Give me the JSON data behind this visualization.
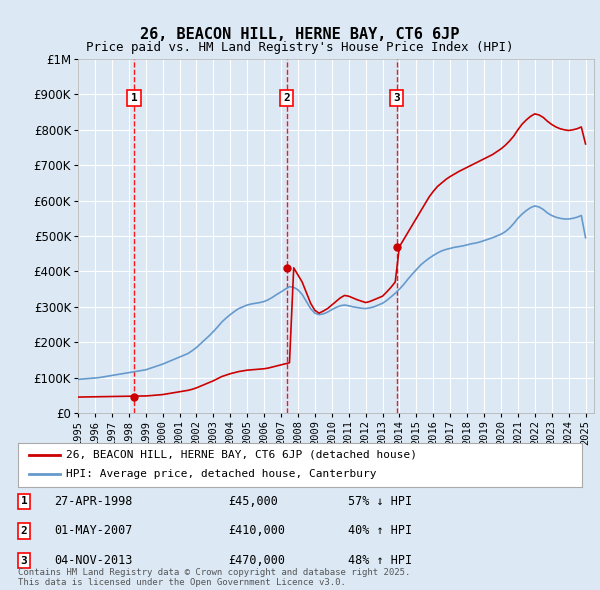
{
  "title": "26, BEACON HILL, HERNE BAY, CT6 6JP",
  "subtitle": "Price paid vs. HM Land Registry's House Price Index (HPI)",
  "ylabel_ticks": [
    "£0",
    "£100K",
    "£200K",
    "£300K",
    "£400K",
    "£500K",
    "£600K",
    "£700K",
    "£800K",
    "£900K",
    "£1M"
  ],
  "ylim": [
    0,
    1000000
  ],
  "yticks": [
    0,
    100000,
    200000,
    300000,
    400000,
    500000,
    600000,
    700000,
    800000,
    900000,
    1000000
  ],
  "xlim_start": 1995.0,
  "xlim_end": 2025.5,
  "bg_color": "#dce9f5",
  "plot_bg_color": "#dce9f5",
  "grid_color": "#ffffff",
  "red_line_color": "#cc0000",
  "blue_line_color": "#6699cc",
  "transaction_dates": [
    1998.32,
    2007.33,
    2013.84
  ],
  "transaction_prices": [
    45000,
    410000,
    470000
  ],
  "transaction_labels": [
    "1",
    "2",
    "3"
  ],
  "vline_color": "#ff0000",
  "legend_items": [
    "26, BEACON HILL, HERNE BAY, CT6 6JP (detached house)",
    "HPI: Average price, detached house, Canterbury"
  ],
  "annotation_rows": [
    {
      "label": "1",
      "date": "27-APR-1998",
      "price": "£45,000",
      "hpi": "57% ↓ HPI"
    },
    {
      "label": "2",
      "date": "01-MAY-2007",
      "price": "£410,000",
      "hpi": "40% ↑ HPI"
    },
    {
      "label": "3",
      "date": "04-NOV-2013",
      "price": "£470,000",
      "hpi": "48% ↑ HPI"
    }
  ],
  "footer": "Contains HM Land Registry data © Crown copyright and database right 2025.\nThis data is licensed under the Open Government Licence v3.0.",
  "hpi_years": [
    1995,
    1995.25,
    1995.5,
    1995.75,
    1996,
    1996.25,
    1996.5,
    1996.75,
    1997,
    1997.25,
    1997.5,
    1997.75,
    1998,
    1998.25,
    1998.5,
    1998.75,
    1999,
    1999.25,
    1999.5,
    1999.75,
    2000,
    2000.25,
    2000.5,
    2000.75,
    2001,
    2001.25,
    2001.5,
    2001.75,
    2002,
    2002.25,
    2002.5,
    2002.75,
    2003,
    2003.25,
    2003.5,
    2003.75,
    2004,
    2004.25,
    2004.5,
    2004.75,
    2005,
    2005.25,
    2005.5,
    2005.75,
    2006,
    2006.25,
    2006.5,
    2006.75,
    2007,
    2007.25,
    2007.5,
    2007.75,
    2008,
    2008.25,
    2008.5,
    2008.75,
    2009,
    2009.25,
    2009.5,
    2009.75,
    2010,
    2010.25,
    2010.5,
    2010.75,
    2011,
    2011.25,
    2011.5,
    2011.75,
    2012,
    2012.25,
    2012.5,
    2012.75,
    2013,
    2013.25,
    2013.5,
    2013.75,
    2014,
    2014.25,
    2014.5,
    2014.75,
    2015,
    2015.25,
    2015.5,
    2015.75,
    2016,
    2016.25,
    2016.5,
    2016.75,
    2017,
    2017.25,
    2017.5,
    2017.75,
    2018,
    2018.25,
    2018.5,
    2018.75,
    2019,
    2019.25,
    2019.5,
    2019.75,
    2020,
    2020.25,
    2020.5,
    2020.75,
    2021,
    2021.25,
    2021.5,
    2021.75,
    2022,
    2022.25,
    2022.5,
    2022.75,
    2023,
    2023.25,
    2023.5,
    2023.75,
    2024,
    2024.25,
    2024.5,
    2024.75,
    2025
  ],
  "hpi_values": [
    95000,
    96000,
    97000,
    98000,
    99000,
    100000,
    102000,
    104000,
    106000,
    108000,
    110000,
    112000,
    114000,
    116000,
    118000,
    120000,
    122000,
    126000,
    130000,
    134000,
    138000,
    143000,
    148000,
    153000,
    158000,
    163000,
    168000,
    176000,
    185000,
    196000,
    207000,
    218000,
    230000,
    243000,
    257000,
    268000,
    278000,
    287000,
    295000,
    300000,
    305000,
    308000,
    310000,
    312000,
    315000,
    320000,
    327000,
    335000,
    342000,
    350000,
    357000,
    355000,
    348000,
    335000,
    315000,
    295000,
    282000,
    278000,
    280000,
    285000,
    292000,
    298000,
    303000,
    305000,
    303000,
    300000,
    298000,
    296000,
    295000,
    297000,
    300000,
    305000,
    310000,
    318000,
    328000,
    338000,
    350000,
    363000,
    378000,
    392000,
    405000,
    418000,
    428000,
    437000,
    445000,
    452000,
    458000,
    462000,
    465000,
    468000,
    470000,
    472000,
    475000,
    478000,
    480000,
    483000,
    487000,
    491000,
    495000,
    500000,
    505000,
    512000,
    522000,
    535000,
    550000,
    562000,
    572000,
    580000,
    585000,
    582000,
    575000,
    565000,
    558000,
    553000,
    550000,
    548000,
    548000,
    550000,
    553000,
    558000,
    495000
  ],
  "red_years": [
    1995,
    1995.25,
    1995.5,
    1995.75,
    1996,
    1996.25,
    1996.5,
    1996.75,
    1997,
    1997.25,
    1997.5,
    1997.75,
    1998,
    1998.25,
    1998.5,
    1998.75,
    1999,
    1999.25,
    1999.5,
    1999.75,
    2000,
    2000.25,
    2000.5,
    2000.75,
    2001,
    2001.25,
    2001.5,
    2001.75,
    2002,
    2002.25,
    2002.5,
    2002.75,
    2003,
    2003.25,
    2003.5,
    2003.75,
    2004,
    2004.25,
    2004.5,
    2004.75,
    2005,
    2005.25,
    2005.5,
    2005.75,
    2006,
    2006.25,
    2006.5,
    2006.75,
    2007,
    2007.25,
    2007.5,
    2007.75,
    2008,
    2008.25,
    2008.5,
    2008.75,
    2009,
    2009.25,
    2009.5,
    2009.75,
    2010,
    2010.25,
    2010.5,
    2010.75,
    2011,
    2011.25,
    2011.5,
    2011.75,
    2012,
    2012.25,
    2012.5,
    2012.75,
    2013,
    2013.25,
    2013.5,
    2013.75,
    2014,
    2014.25,
    2014.5,
    2014.75,
    2015,
    2015.25,
    2015.5,
    2015.75,
    2016,
    2016.25,
    2016.5,
    2016.75,
    2017,
    2017.25,
    2017.5,
    2017.75,
    2018,
    2018.25,
    2018.5,
    2018.75,
    2019,
    2019.25,
    2019.5,
    2019.75,
    2020,
    2020.25,
    2020.5,
    2020.75,
    2021,
    2021.25,
    2021.5,
    2021.75,
    2022,
    2022.25,
    2022.5,
    2022.75,
    2023,
    2023.25,
    2023.5,
    2023.75,
    2024,
    2024.25,
    2024.5,
    2024.75,
    2025
  ],
  "red_values": [
    45000,
    45200,
    45400,
    45600,
    45800,
    46000,
    46200,
    46400,
    46600,
    46800,
    47000,
    47200,
    47400,
    47600,
    47800,
    48000,
    48200,
    49000,
    50000,
    51000,
    52000,
    54000,
    56000,
    58000,
    60000,
    62000,
    64000,
    67000,
    71000,
    76000,
    81000,
    86000,
    91000,
    97000,
    103000,
    107000,
    111000,
    114000,
    117000,
    119000,
    121000,
    122000,
    123000,
    124000,
    125000,
    127000,
    130000,
    133000,
    136000,
    139000,
    142000,
    410000,
    390000,
    370000,
    340000,
    310000,
    290000,
    282000,
    288000,
    295000,
    305000,
    315000,
    325000,
    332000,
    330000,
    325000,
    320000,
    316000,
    312000,
    315000,
    320000,
    325000,
    330000,
    342000,
    355000,
    370000,
    470000,
    490000,
    510000,
    530000,
    550000,
    570000,
    590000,
    610000,
    626000,
    640000,
    650000,
    660000,
    668000,
    675000,
    682000,
    688000,
    694000,
    700000,
    706000,
    712000,
    718000,
    724000,
    730000,
    738000,
    746000,
    756000,
    768000,
    782000,
    800000,
    816000,
    828000,
    838000,
    845000,
    842000,
    835000,
    824000,
    815000,
    808000,
    803000,
    800000,
    798000,
    800000,
    803000,
    808000,
    760000
  ]
}
